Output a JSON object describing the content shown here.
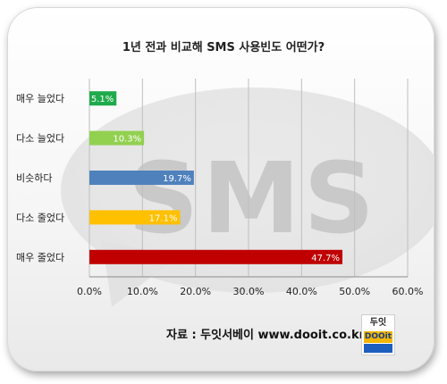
{
  "chart_data": {
    "type": "bar",
    "orientation": "horizontal",
    "title": "1년 전과 비교해 SMS 사용빈도 어떤가?",
    "categories": [
      "매우 늘었다",
      "다소 늘었다",
      "비슷하다",
      "다소 줄었다",
      "매우 줄었다"
    ],
    "values": [
      5.1,
      10.3,
      19.7,
      17.1,
      47.7
    ],
    "value_labels": [
      "5.1%",
      "10.3%",
      "19.7%",
      "17.1%",
      "47.7%"
    ],
    "bar_colors": [
      "#1faa4b",
      "#92d050",
      "#4f81bd",
      "#ffc000",
      "#c00000"
    ],
    "x_ticks": [
      "0.0%",
      "10.0%",
      "20.0%",
      "30.0%",
      "40.0%",
      "50.0%",
      "60.0%"
    ],
    "xlim": [
      0,
      60
    ],
    "grid": true,
    "legend": "none"
  },
  "watermark": {
    "icon": "sms-speech-bubble-icon",
    "text": "SMS"
  },
  "source": "자료 : 두잇서베이 www.dooit.co.kr",
  "logo": {
    "top": "두잇",
    "middle": "DOOit"
  }
}
